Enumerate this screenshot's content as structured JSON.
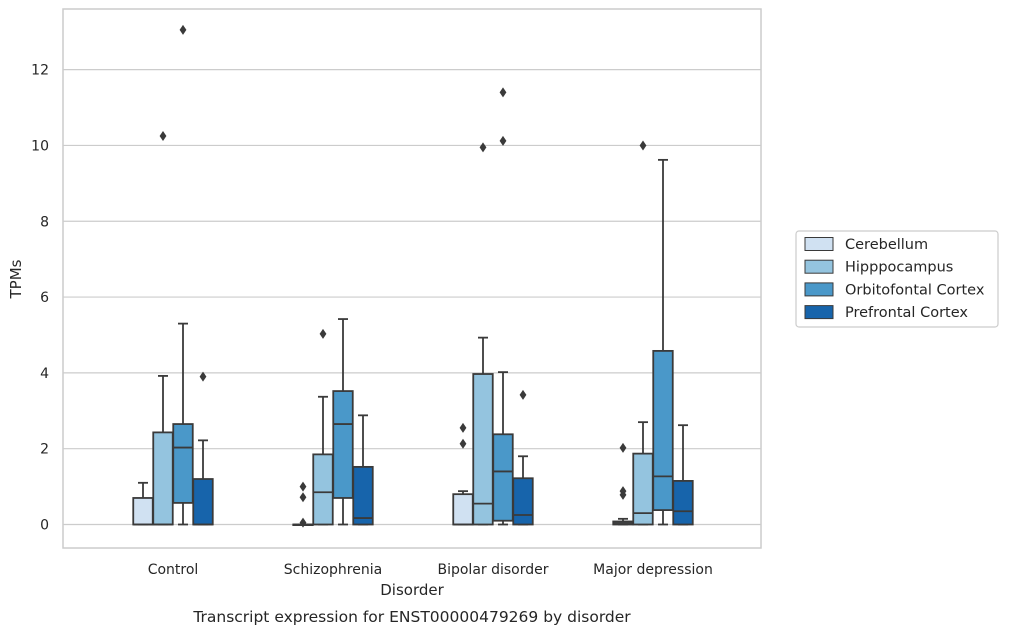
{
  "caption": "Transcript expression for ENST00000479269 by disorder",
  "chart_data": {
    "type": "box",
    "title": "",
    "xlabel": "Disorder",
    "ylabel": "TPMs",
    "ylim": [
      -0.62,
      13.6
    ],
    "yticks": [
      0,
      2,
      4,
      6,
      8,
      10,
      12
    ],
    "grid": "horizontal",
    "legend_position": "right",
    "categories": [
      "Control",
      "Schizophrenia",
      "Bipolar disorder",
      "Major depression"
    ],
    "series": [
      {
        "name": "Cerebellum",
        "color": "#d0e1f2",
        "boxes": [
          {
            "q1": 0,
            "median": 0,
            "q3": 0.7,
            "whisker_low": 0,
            "whisker_high": 1.1,
            "outliers": []
          },
          {
            "q1": 0,
            "median": 0,
            "q3": 0,
            "whisker_low": 0,
            "whisker_high": 0,
            "outliers": [
              0.05,
              0.72,
              1.0
            ]
          },
          {
            "q1": 0,
            "median": 0,
            "q3": 0.8,
            "whisker_low": 0,
            "whisker_high": 0.88,
            "outliers": [
              2.13,
              2.55
            ]
          },
          {
            "q1": 0,
            "median": 0.04,
            "q3": 0.08,
            "whisker_low": 0,
            "whisker_high": 0.15,
            "outliers": [
              0.78,
              0.88,
              2.02
            ]
          }
        ]
      },
      {
        "name": "Hipppocampus",
        "color": "#94c4df",
        "boxes": [
          {
            "q1": 0,
            "median": 0,
            "q3": 2.43,
            "whisker_low": 0,
            "whisker_high": 3.92,
            "outliers": [
              10.25
            ]
          },
          {
            "q1": 0,
            "median": 0.85,
            "q3": 1.85,
            "whisker_low": 0,
            "whisker_high": 3.37,
            "outliers": [
              5.03
            ]
          },
          {
            "q1": 0,
            "median": 0.55,
            "q3": 3.97,
            "whisker_low": 0,
            "whisker_high": 4.93,
            "outliers": [
              9.95
            ]
          },
          {
            "q1": 0,
            "median": 0.3,
            "q3": 1.87,
            "whisker_low": 0,
            "whisker_high": 2.7,
            "outliers": [
              10.0
            ]
          }
        ]
      },
      {
        "name": "Orbitofontal Cortex",
        "color": "#4a98c9",
        "boxes": [
          {
            "q1": 0.57,
            "median": 2.03,
            "q3": 2.65,
            "whisker_low": 0,
            "whisker_high": 5.3,
            "outliers": [
              13.05
            ]
          },
          {
            "q1": 0.7,
            "median": 2.65,
            "q3": 3.52,
            "whisker_low": 0,
            "whisker_high": 5.42,
            "outliers": []
          },
          {
            "q1": 0.1,
            "median": 1.4,
            "q3": 2.38,
            "whisker_low": 0,
            "whisker_high": 4.02,
            "outliers": [
              10.12,
              11.4
            ]
          },
          {
            "q1": 0.38,
            "median": 1.27,
            "q3": 4.58,
            "whisker_low": 0,
            "whisker_high": 9.62,
            "outliers": []
          }
        ]
      },
      {
        "name": "Prefrontal Cortex",
        "color": "#1764ab",
        "boxes": [
          {
            "q1": 0,
            "median": 0,
            "q3": 1.2,
            "whisker_low": 0,
            "whisker_high": 2.22,
            "outliers": [
              3.9
            ]
          },
          {
            "q1": 0,
            "median": 0.17,
            "q3": 1.52,
            "whisker_low": 0,
            "whisker_high": 2.88,
            "outliers": []
          },
          {
            "q1": 0,
            "median": 0.25,
            "q3": 1.22,
            "whisker_low": 0,
            "whisker_high": 1.8,
            "outliers": [
              3.42
            ]
          },
          {
            "q1": 0,
            "median": 0.35,
            "q3": 1.15,
            "whisker_low": 0,
            "whisker_high": 2.62,
            "outliers": []
          }
        ]
      }
    ]
  }
}
